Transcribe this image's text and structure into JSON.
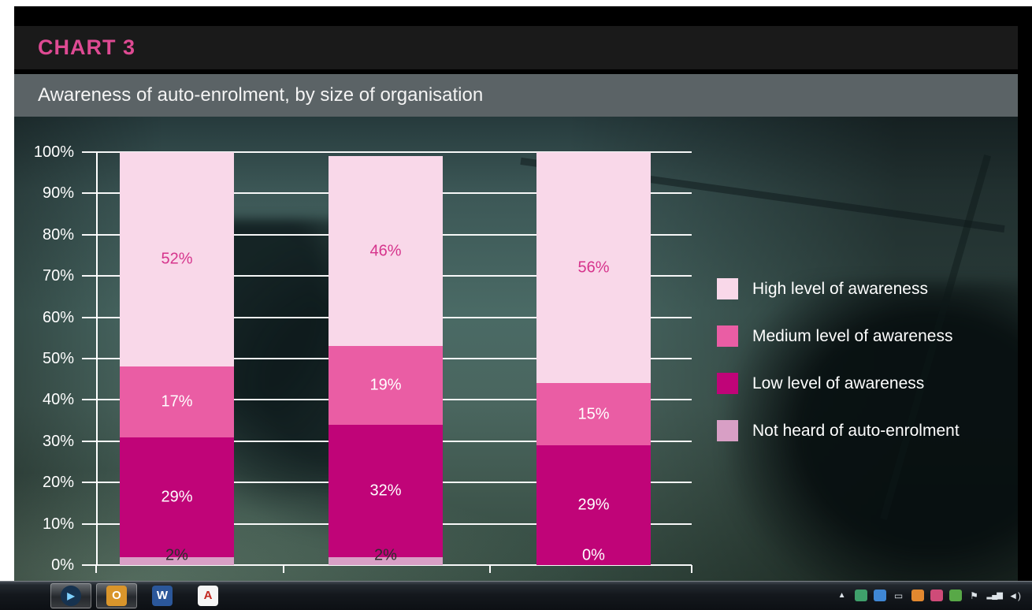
{
  "slide": {
    "chart_label": "CHART 3",
    "subtitle": "Awareness of auto-enrolment, by size of organisation",
    "accent_pink": "#de4a93",
    "subtitle_band_gray": "#5b6366",
    "background_teal": "#4a6a65"
  },
  "chart_data": {
    "type": "bar",
    "stacked": true,
    "title": "Awareness of auto-enrolment, by size of organisation",
    "categories": [
      "",
      "",
      ""
    ],
    "series": [
      {
        "name": "Not heard of auto-enrolment",
        "color": "#d89fc5",
        "values": [
          2,
          2,
          0
        ],
        "label_colors": [
          "#2d2d2d",
          "#2d2d2d",
          "#ffffff"
        ]
      },
      {
        "name": "Low level of awareness",
        "color": "#c00478",
        "values": [
          29,
          32,
          29
        ],
        "label_colors": [
          "#ffffff",
          "#ffffff",
          "#ffffff"
        ]
      },
      {
        "name": "Medium level of awareness",
        "color": "#ea5da4",
        "values": [
          17,
          19,
          15
        ],
        "label_colors": [
          "#ffffff",
          "#ffffff",
          "#ffffff"
        ]
      },
      {
        "name": "High level of awareness",
        "color": "#f9d8e9",
        "values": [
          52,
          46,
          56
        ],
        "label_colors": [
          "#d6348c",
          "#d6348c",
          "#d6348c"
        ]
      }
    ],
    "ylim": [
      0,
      100
    ],
    "ytick_step": 10,
    "ytick_labels": [
      "0%",
      "10%",
      "20%",
      "30%",
      "40%",
      "50%",
      "60%",
      "70%",
      "80%",
      "90%",
      "100%"
    ],
    "grid": true,
    "gridline_color": "#ffffff",
    "legend_position": "right",
    "legend": [
      "High level of awareness",
      "Medium level of awareness",
      "Low level of awareness",
      "Not heard of auto-enrolment"
    ]
  },
  "legend_items": [
    {
      "label": "High level of awareness",
      "color": "#f9d8e9"
    },
    {
      "label": "Medium level of awareness",
      "color": "#ea5da4"
    },
    {
      "label": "Low level of awareness",
      "color": "#c00478"
    },
    {
      "label": "Not heard of auto-enrolment",
      "color": "#d89fc5"
    }
  ],
  "taskbar": {
    "apps": [
      {
        "name": "media-player",
        "glyph": "▶",
        "bg": "#16324f",
        "fg": "#7fd1ff",
        "active": true,
        "round": true
      },
      {
        "name": "outlook",
        "glyph": "O",
        "bg": "#d9952b",
        "fg": "#ffffff",
        "active": true,
        "round": false
      },
      {
        "name": "word",
        "glyph": "W",
        "bg": "#2b579a",
        "fg": "#ffffff",
        "active": false,
        "round": false
      },
      {
        "name": "adobe-reader",
        "glyph": "A",
        "bg": "#f5f5f5",
        "fg": "#c2261f",
        "active": false,
        "round": false
      }
    ],
    "tray_icons": [
      {
        "name": "show-hidden-icons-button",
        "glyph": "▲",
        "color": "#dde3e8",
        "small": true
      },
      {
        "name": "tray-app-icon-1",
        "glyph": "",
        "bg": "#3fa06b"
      },
      {
        "name": "tray-app-icon-2",
        "glyph": "",
        "bg": "#3f87d4"
      },
      {
        "name": "display-settings-icon",
        "glyph": "▭",
        "color": "#d9e0e5"
      },
      {
        "name": "tray-app-icon-3",
        "glyph": "",
        "bg": "#e2882f"
      },
      {
        "name": "tray-app-icon-4",
        "glyph": "",
        "bg": "#cf4b78"
      },
      {
        "name": "wireless-network-icon",
        "glyph": "",
        "bg": "#58a847"
      },
      {
        "name": "action-center-flag-icon",
        "glyph": "⚑",
        "color": "#dde3e8"
      },
      {
        "name": "network-signal-icon",
        "glyph": "▂▄▆",
        "color": "#dde3e8",
        "bars": true
      },
      {
        "name": "volume-icon",
        "glyph": "◄)",
        "color": "#dde3e8"
      }
    ]
  }
}
